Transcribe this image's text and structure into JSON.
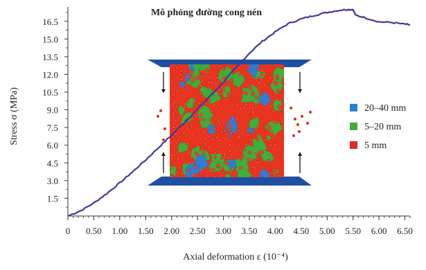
{
  "chart_data": {
    "type": "line",
    "title": "Mô phỏng đường cong nén",
    "xlabel": "Axial deformation ε (10⁻⁴)",
    "ylabel": "Stress σ (MPa)",
    "xlim": [
      0,
      6.6
    ],
    "ylim": [
      0,
      17.6
    ],
    "x_ticks": [
      0,
      0.5,
      1.0,
      1.5,
      2.0,
      2.5,
      3.0,
      3.5,
      4.0,
      4.5,
      5.0,
      5.5,
      6.0,
      6.5
    ],
    "x_tick_labels": [
      "0",
      "0.50",
      "1.00",
      "1.50",
      "2.00",
      "2.50",
      "3.00",
      "3.50",
      "4.00",
      "4.50",
      "5.00",
      "5.50",
      "6.00",
      "6.50"
    ],
    "y_ticks": [
      1.5,
      3.0,
      4.5,
      6.0,
      7.5,
      9.0,
      10.5,
      12.0,
      13.5,
      15.0,
      16.5
    ],
    "y_tick_labels": [
      "1.5",
      "3.0",
      "4.5",
      "6.0",
      "7.5",
      "9.0",
      "10.5",
      "12.0",
      "13.5",
      "15.0",
      "16.5"
    ],
    "grid": false,
    "legend_position": "right",
    "line_color": "#3a3a9c",
    "x": [
      0,
      0.25,
      0.5,
      0.75,
      1.0,
      1.25,
      1.5,
      1.75,
      2.0,
      2.25,
      2.5,
      2.75,
      3.0,
      3.25,
      3.5,
      3.75,
      4.0,
      4.25,
      4.5,
      4.75,
      5.0,
      5.25,
      5.4,
      5.5,
      5.55,
      5.7,
      6.0,
      6.25,
      6.5,
      6.6
    ],
    "y": [
      0,
      0.45,
      1.1,
      1.9,
      2.8,
      3.75,
      4.75,
      5.8,
      6.85,
      7.95,
      9.05,
      10.2,
      11.35,
      12.6,
      13.8,
      14.8,
      15.6,
      16.3,
      16.7,
      17.0,
      17.25,
      17.45,
      17.5,
      17.5,
      17.0,
      16.85,
      16.45,
      16.4,
      16.25,
      16.2
    ],
    "inset": {
      "legend": [
        {
          "label": "20–40 mm",
          "color": "#2a7fd4"
        },
        {
          "label": "5–20 mm",
          "color": "#3fae3a"
        },
        {
          "label": "5 mm",
          "color": "#e02a1e"
        }
      ],
      "platen_color": "#1f4fa0",
      "specimen_color": "#e8341f"
    }
  }
}
